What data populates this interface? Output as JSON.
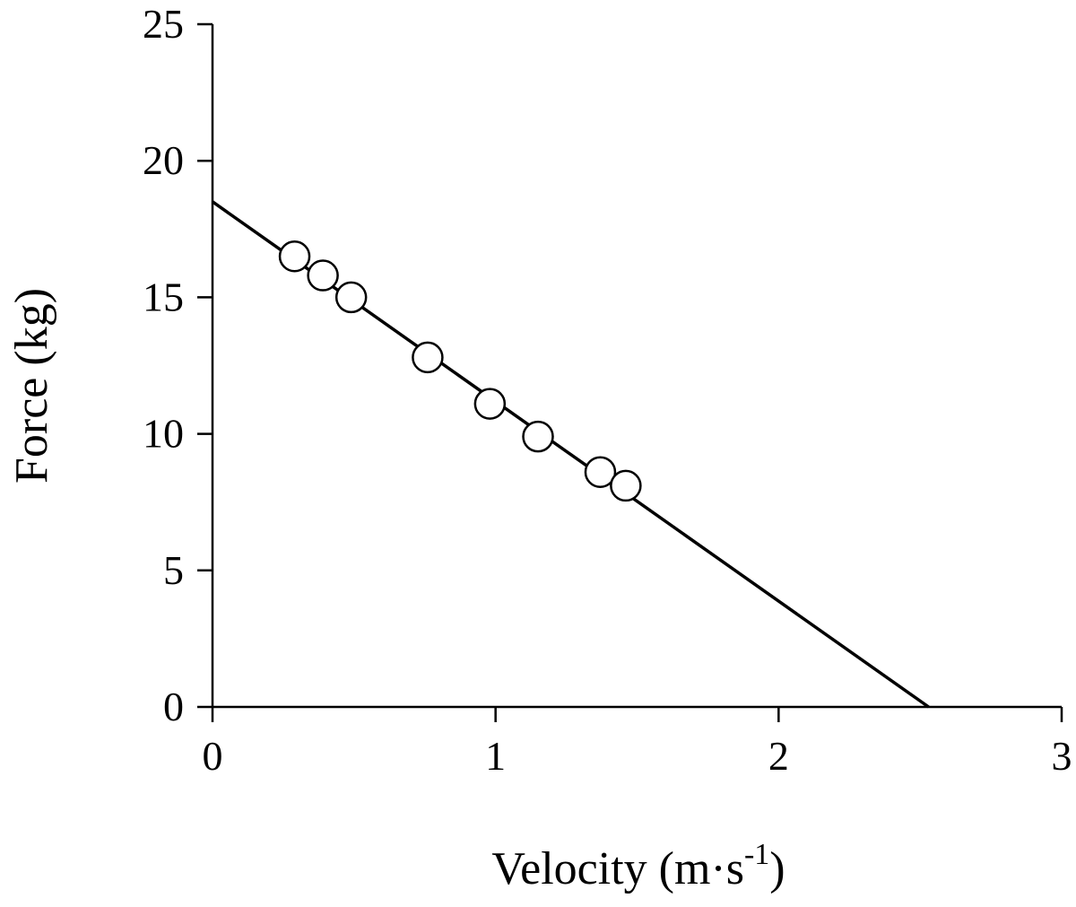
{
  "chart_data": {
    "type": "scatter",
    "title": "",
    "xlabel": "Velocity (m·s",
    "xlabel_superscript": "-1",
    "xlabel_close": ")",
    "ylabel": "Force (kg)",
    "xlim": [
      0,
      3
    ],
    "ylim": [
      0,
      25
    ],
    "xticks": [
      0,
      1,
      2,
      3
    ],
    "yticks": [
      0,
      5,
      10,
      15,
      20,
      25
    ],
    "grid": false,
    "points": [
      {
        "x": 0.29,
        "y": 16.5
      },
      {
        "x": 0.39,
        "y": 15.8
      },
      {
        "x": 0.49,
        "y": 15.0
      },
      {
        "x": 0.76,
        "y": 12.8
      },
      {
        "x": 0.98,
        "y": 11.1
      },
      {
        "x": 1.15,
        "y": 9.9
      },
      {
        "x": 1.37,
        "y": 8.6
      },
      {
        "x": 1.46,
        "y": 8.1
      }
    ],
    "fit_line": {
      "x": [
        0,
        2.53
      ],
      "y": [
        18.5,
        0
      ]
    },
    "colors": {
      "line": "#000000",
      "marker_fill": "#ffffff",
      "marker_edge": "#000000"
    }
  }
}
